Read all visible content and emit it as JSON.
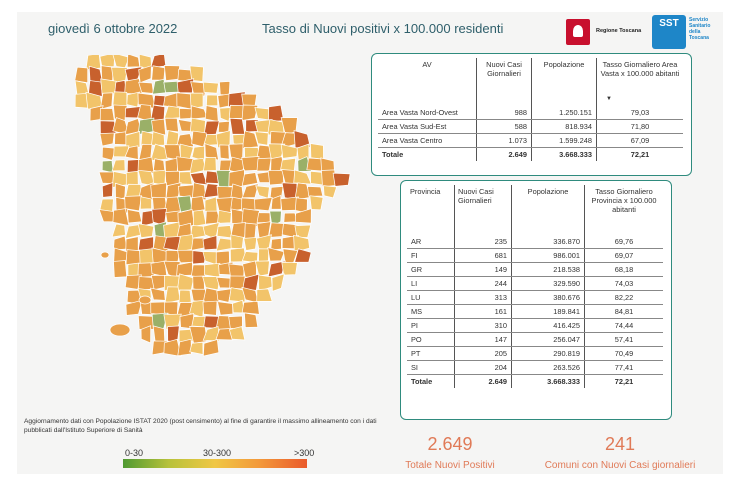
{
  "header": {
    "date": "giovedì 6 ottobre 2022",
    "title": "Tasso di Nuovi positivi x 100.000 residenti",
    "logo_regione": "Regione Toscana",
    "logo_sst_short": "SST",
    "logo_sst_lines": [
      "Servizio",
      "Sanitario",
      "della",
      "Toscana"
    ]
  },
  "av_table": {
    "headers": [
      "AV",
      "Nuovi Casi Giornalieri",
      "Popolazione",
      "Tasso Giornaliero Area Vasta x 100.000 abitanti"
    ],
    "rows": [
      [
        "Area Vasta Nord-Ovest",
        "988",
        "1.250.151",
        "79,03"
      ],
      [
        "Area Vasta Sud-Est",
        "588",
        "818.934",
        "71,80"
      ],
      [
        "Area Vasta Centro",
        "1.073",
        "1.599.248",
        "67,09"
      ]
    ],
    "total": [
      "Totale",
      "2.649",
      "3.668.333",
      "72,21"
    ]
  },
  "prov_table": {
    "headers": [
      "Provincia",
      "Nuovi Casi Giornalieri",
      "Popolazione",
      "Tasso Giornaliero Provincia x 100.000 abitanti"
    ],
    "rows": [
      [
        "AR",
        "235",
        "336.870",
        "69,76"
      ],
      [
        "FI",
        "681",
        "986.001",
        "69,07"
      ],
      [
        "GR",
        "149",
        "218.538",
        "68,18"
      ],
      [
        "LI",
        "244",
        "329.590",
        "74,03"
      ],
      [
        "LU",
        "313",
        "380.676",
        "82,22"
      ],
      [
        "MS",
        "161",
        "189.841",
        "84,81"
      ],
      [
        "PI",
        "310",
        "416.425",
        "74,44"
      ],
      [
        "PO",
        "147",
        "256.047",
        "57,41"
      ],
      [
        "PT",
        "205",
        "290.819",
        "70,49"
      ],
      [
        "SI",
        "204",
        "263.526",
        "77,41"
      ]
    ],
    "total": [
      "Totale",
      "2.649",
      "3.668.333",
      "72,21"
    ]
  },
  "kpis": [
    {
      "value": "2.649",
      "label": "Totale Nuovi Positivi"
    },
    {
      "value": "241",
      "label": "Comuni con Nuovi Casi giornalieri"
    }
  ],
  "note": "Aggiornamento dati con Popolazione ISTAT 2020 (post censimento) al fine di garantire il massimo allineamento con i dati pubblicati dall'Istituto Superiore di Sanità",
  "legend": {
    "low": "0-30",
    "mid": "30-300",
    "high": ">300",
    "colors": [
      "#4f9a32",
      "#b8c23b",
      "#f0c744",
      "#f3973a",
      "#ea5a2b"
    ]
  },
  "map_colors": {
    "fill": "#e8a04a",
    "dark": "#c8612d",
    "light": "#f2c46a",
    "green": "#9ab068",
    "border": "#ffffff"
  }
}
